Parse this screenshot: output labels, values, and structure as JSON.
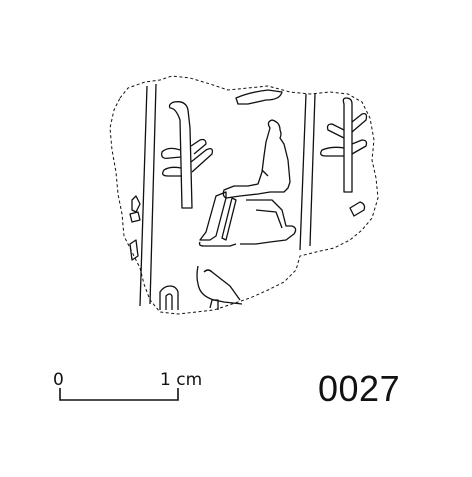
{
  "scale_bar": {
    "start_label": "0",
    "end_label": "1 cm"
  },
  "catalog_number": "0027",
  "drawing": {
    "stroke_color": "#111111",
    "background": "#ffffff",
    "motifs": [
      "fragment-outline",
      "column-divider-line",
      "reed-sign",
      "seated-figure",
      "chair",
      "partial-signs"
    ]
  }
}
